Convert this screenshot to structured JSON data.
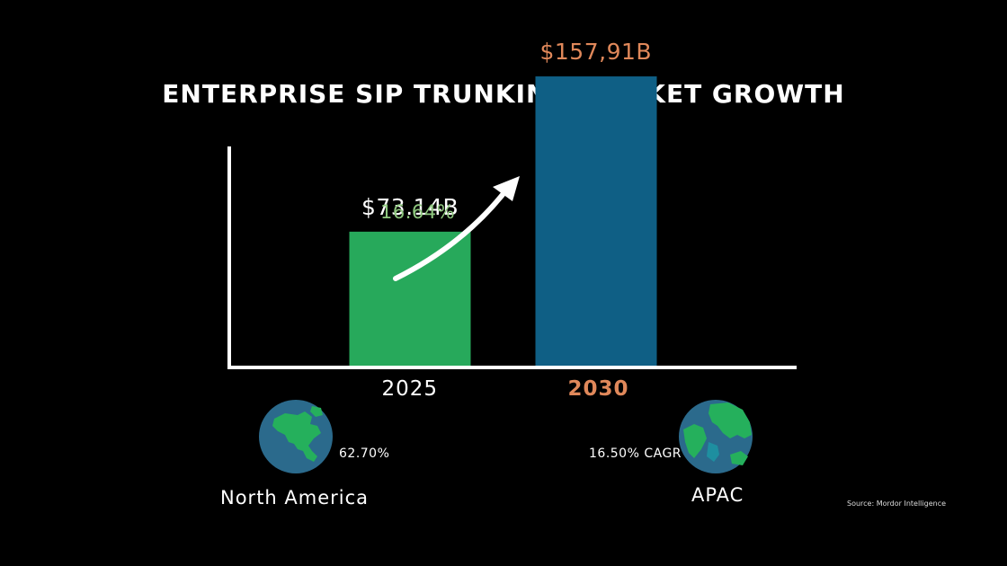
{
  "colors": {
    "background": "#000000",
    "bar_2025": "#27a95b",
    "bar_2030": "#0f5f85",
    "label_2030": "#e0885a",
    "growth_text": "#8ec77e",
    "globe_ocean": "#2b6a8c",
    "globe_land": "#25b05c"
  },
  "chart_data": {
    "type": "bar",
    "title": "ENTERPRISE SIP TRUNKING MARKET GROWTH",
    "categories": [
      "2025",
      "2030"
    ],
    "values": [
      73.14,
      157.91
    ],
    "value_labels": [
      "$73.14B",
      "$157,91B"
    ],
    "ylim": [
      0,
      180
    ],
    "grid": false,
    "annotations": [
      {
        "text": "16.64%",
        "type": "growth-arrow",
        "from": "2025",
        "to": "2030"
      }
    ]
  },
  "regions": [
    {
      "name": "North America",
      "stat": "62.70%",
      "icon": "globe-americas-icon"
    },
    {
      "name": "APAC",
      "stat": "16.50% CAGR",
      "icon": "globe-asia-pacific-icon"
    }
  ],
  "source": "Source: Mordor Intelligence"
}
